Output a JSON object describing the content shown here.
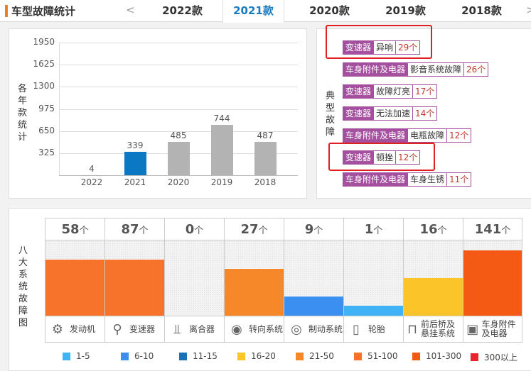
{
  "header": {
    "title": "车型故障统计",
    "prev": "<",
    "next": ">",
    "tabs": [
      {
        "label": "2022款"
      },
      {
        "label": "2021款",
        "active": true
      },
      {
        "label": "2020款"
      },
      {
        "label": "2019款"
      },
      {
        "label": "2018款"
      }
    ]
  },
  "chart_data": {
    "type": "bar",
    "ylabel": "各年款统计",
    "categories": [
      "2022",
      "2021",
      "2020",
      "2019",
      "2018"
    ],
    "values": [
      4,
      339,
      485,
      744,
      487
    ],
    "highlight": "2021",
    "highlight_color": "#0a78c2",
    "bar_color": "#b3b3b3",
    "yticks": [
      325,
      650,
      975,
      1300,
      1625,
      1950
    ],
    "ylim": [
      0,
      1950
    ],
    "grid": true
  },
  "typical": {
    "label": "典型故障",
    "items": [
      {
        "system": "变速器",
        "fault": "异响",
        "count": "29个",
        "highlighted": true
      },
      {
        "system": "车身附件及电器",
        "fault": "影音系统故障",
        "count": "26个"
      },
      {
        "system": "变速器",
        "fault": "故障灯亮",
        "count": "17个"
      },
      {
        "system": "变速器",
        "fault": "无法加速",
        "count": "14个"
      },
      {
        "system": "车身附件及电器",
        "fault": "电瓶故障",
        "count": "12个"
      },
      {
        "system": "变速器",
        "fault": "顿挫",
        "count": "12个",
        "highlighted": true
      },
      {
        "system": "车身附件及电器",
        "fault": "车身生锈",
        "count": "11个"
      }
    ]
  },
  "systems": {
    "label": "八大系统故障图",
    "unit": "个",
    "items": [
      {
        "name": "发动机",
        "count": 58,
        "icon": "engine-icon"
      },
      {
        "name": "变速器",
        "count": 87,
        "icon": "gear-shift-icon"
      },
      {
        "name": "离合器",
        "count": 0,
        "icon": "clutch-icon"
      },
      {
        "name": "转向系统",
        "count": 27,
        "icon": "steering-wheel-icon"
      },
      {
        "name": "制动系统",
        "count": 9,
        "icon": "brake-disc-icon"
      },
      {
        "name": "轮胎",
        "count": 1,
        "icon": "tire-icon"
      },
      {
        "name": "前后桥及悬挂系统",
        "count": 16,
        "icon": "suspension-icon"
      },
      {
        "name": "车身附件及电器",
        "count": 141,
        "icon": "battery-icon"
      }
    ]
  },
  "legend": [
    {
      "label": "1-5",
      "color": "#3fb3f5"
    },
    {
      "label": "6-10",
      "color": "#3b8ff0"
    },
    {
      "label": "11-15",
      "color": "#1a72b8"
    },
    {
      "label": "16-20",
      "color": "#fbc52a"
    },
    {
      "label": "21-50",
      "color": "#f7882a"
    },
    {
      "label": "51-100",
      "color": "#f7722a"
    },
    {
      "label": "101-300",
      "color": "#f55a14"
    },
    {
      "label": "300以上",
      "color": "#e8242c"
    }
  ]
}
